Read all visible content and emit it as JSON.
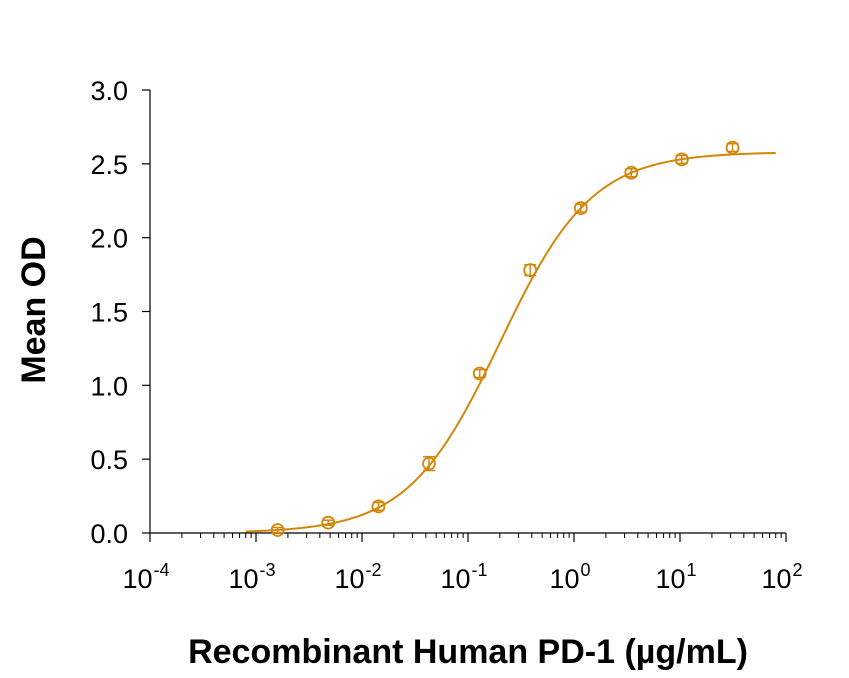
{
  "chart_data": {
    "type": "scatter",
    "title": "",
    "xlabel": "Recombinant Human PD-1 (µg/mL)",
    "ylabel": "Mean OD",
    "x_scale": "log",
    "xlim": [
      0.0001,
      100
    ],
    "ylim": [
      0,
      3.0
    ],
    "x_ticks": [
      {
        "base": "10",
        "exp": "-4",
        "value": 0.0001
      },
      {
        "base": "10",
        "exp": "-3",
        "value": 0.001
      },
      {
        "base": "10",
        "exp": "-2",
        "value": 0.01
      },
      {
        "base": "10",
        "exp": "-1",
        "value": 0.1
      },
      {
        "base": "10",
        "exp": "0",
        "value": 1
      },
      {
        "base": "10",
        "exp": "1",
        "value": 10
      },
      {
        "base": "10",
        "exp": "2",
        "value": 100
      }
    ],
    "y_ticks": [
      "0.0",
      "0.5",
      "1.0",
      "1.5",
      "2.0",
      "2.5",
      "3.0"
    ],
    "grid": false,
    "color": "#D4860B",
    "series": [
      {
        "x": [
          0.0016,
          0.0048,
          0.0143,
          0.0429,
          0.129,
          0.386,
          1.16,
          3.47,
          10.4,
          31.3
        ],
        "y": [
          0.02,
          0.07,
          0.18,
          0.47,
          1.08,
          1.78,
          2.2,
          2.44,
          2.53,
          2.61
        ],
        "error": [
          0.01,
          0.01,
          0.02,
          0.04,
          0.02,
          0.03,
          0.02,
          0.02,
          0.02,
          0.02
        ]
      }
    ],
    "fit": {
      "model": "4PL",
      "bottom": 0.0,
      "top": 2.58,
      "ec50": 0.2,
      "hill": 1.0
    }
  }
}
